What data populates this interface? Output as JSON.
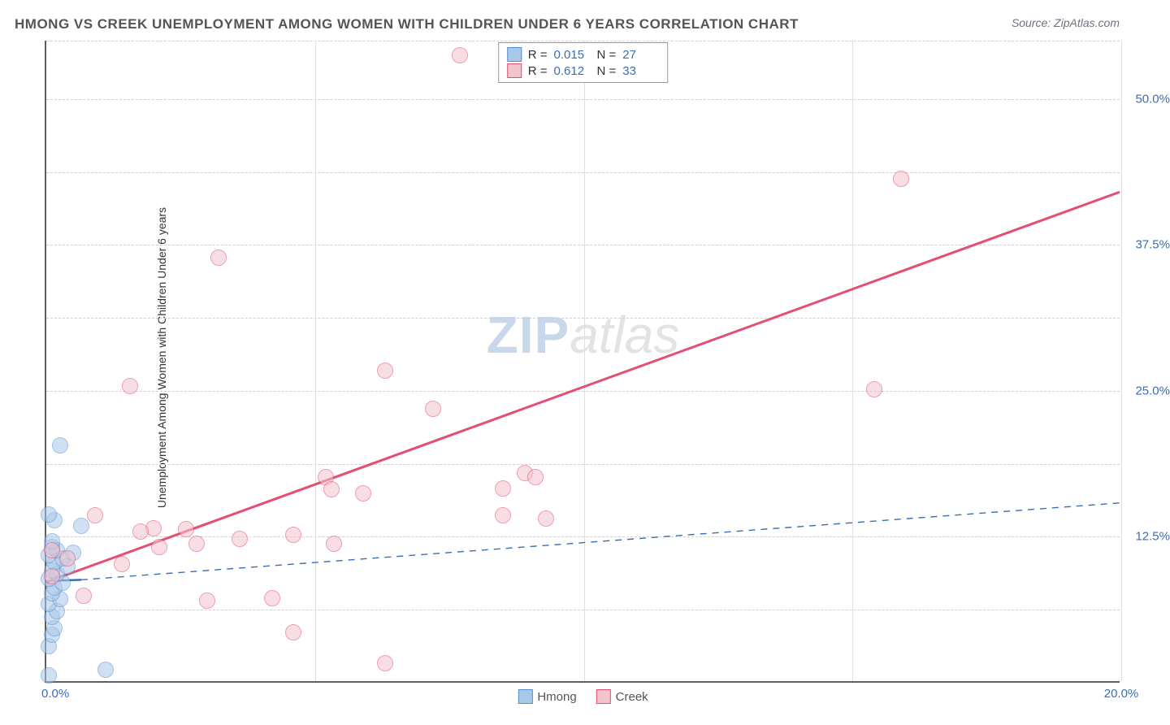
{
  "title": "HMONG VS CREEK UNEMPLOYMENT AMONG WOMEN WITH CHILDREN UNDER 6 YEARS CORRELATION CHART",
  "source": "Source: ZipAtlas.com",
  "ylabel": "Unemployment Among Women with Children Under 6 years",
  "watermark": {
    "left": "ZIP",
    "right": "atlas"
  },
  "chart": {
    "type": "scatter",
    "xlim": [
      0,
      20
    ],
    "ylim": [
      0,
      55
    ],
    "x_ticks": [
      0,
      20
    ],
    "x_tick_labels": [
      "0.0%",
      "20.0%"
    ],
    "y_ticks": [
      12.5,
      25.0,
      37.5,
      50.0
    ],
    "y_tick_labels": [
      "12.5%",
      "25.0%",
      "37.5%",
      "50.0%"
    ],
    "x_gridlines": [
      5,
      10,
      15,
      20
    ],
    "y_grid_dashed": [
      6.25,
      12.5,
      18.75,
      25.0,
      31.25,
      37.5,
      43.75,
      50.0,
      55.0
    ],
    "background_color": "#ffffff",
    "grid_color_v": "#e0e0e0",
    "grid_color_h": "#d0d0d0",
    "axis_color": "#606060",
    "label_color": "#3b6db3",
    "marker_radius": 10,
    "series": [
      {
        "name": "Hmong",
        "fill": "#a9c7e8",
        "stroke": "#5a8fce",
        "opacity": 0.55,
        "R": "0.015",
        "N": "27",
        "trend": {
          "style": "solid_then_dashed",
          "color": "#3b6db3",
          "width_solid": 2.5,
          "width_dashed": 1.4,
          "solid_from": [
            0,
            8.6
          ],
          "solid_to": [
            0.65,
            8.7
          ],
          "dashed_from": [
            0.65,
            8.7
          ],
          "dashed_to": [
            20,
            15.3
          ]
        },
        "points": [
          [
            0.05,
            0.5
          ],
          [
            0.05,
            3.0
          ],
          [
            0.1,
            4.0
          ],
          [
            0.15,
            4.5
          ],
          [
            0.1,
            5.5
          ],
          [
            0.2,
            6.0
          ],
          [
            0.05,
            6.6
          ],
          [
            0.25,
            7.0
          ],
          [
            0.1,
            7.5
          ],
          [
            0.15,
            8.0
          ],
          [
            0.3,
            8.4
          ],
          [
            0.05,
            8.8
          ],
          [
            0.2,
            9.2
          ],
          [
            0.1,
            9.5
          ],
          [
            0.4,
            9.8
          ],
          [
            0.15,
            10.2
          ],
          [
            0.3,
            10.5
          ],
          [
            0.05,
            10.8
          ],
          [
            0.2,
            11.2
          ],
          [
            0.1,
            11.5
          ],
          [
            0.5,
            11.0
          ],
          [
            0.1,
            12.0
          ],
          [
            0.65,
            13.3
          ],
          [
            0.15,
            13.8
          ],
          [
            0.05,
            14.3
          ],
          [
            0.25,
            20.2
          ],
          [
            1.1,
            1.0
          ]
        ]
      },
      {
        "name": "Creek",
        "fill": "#f2c4ce",
        "stroke": "#e64d73",
        "opacity": 0.55,
        "R": "0.612",
        "N": "33",
        "trend": {
          "style": "solid",
          "color": "#e64d73",
          "width": 3,
          "from": [
            0,
            8.5
          ],
          "to": [
            20,
            42.0
          ]
        },
        "points": [
          [
            0.1,
            9.0
          ],
          [
            0.1,
            11.2
          ],
          [
            0.4,
            10.5
          ],
          [
            0.7,
            7.3
          ],
          [
            0.9,
            14.2
          ],
          [
            1.4,
            10.0
          ],
          [
            2.0,
            13.1
          ],
          [
            2.1,
            11.5
          ],
          [
            1.75,
            12.8
          ],
          [
            2.6,
            13.0
          ],
          [
            2.8,
            11.8
          ],
          [
            1.55,
            25.3
          ],
          [
            3.0,
            6.9
          ],
          [
            3.2,
            36.3
          ],
          [
            3.6,
            12.2
          ],
          [
            4.2,
            7.1
          ],
          [
            4.6,
            12.5
          ],
          [
            4.6,
            4.2
          ],
          [
            5.2,
            17.5
          ],
          [
            5.3,
            16.4
          ],
          [
            5.35,
            11.8
          ],
          [
            5.9,
            16.1
          ],
          [
            6.3,
            1.5
          ],
          [
            6.3,
            26.6
          ],
          [
            7.2,
            23.3
          ],
          [
            7.7,
            53.6
          ],
          [
            8.5,
            16.5
          ],
          [
            8.5,
            14.2
          ],
          [
            8.9,
            17.8
          ],
          [
            9.1,
            17.5
          ],
          [
            9.3,
            13.9
          ],
          [
            15.4,
            25.0
          ],
          [
            15.9,
            43.0
          ]
        ]
      }
    ],
    "legend": {
      "items": [
        {
          "label": "Hmong",
          "fill": "#a9c7e8",
          "stroke": "#5a8fce"
        },
        {
          "label": "Creek",
          "fill": "#f2c4ce",
          "stroke": "#e64d73"
        }
      ]
    }
  }
}
